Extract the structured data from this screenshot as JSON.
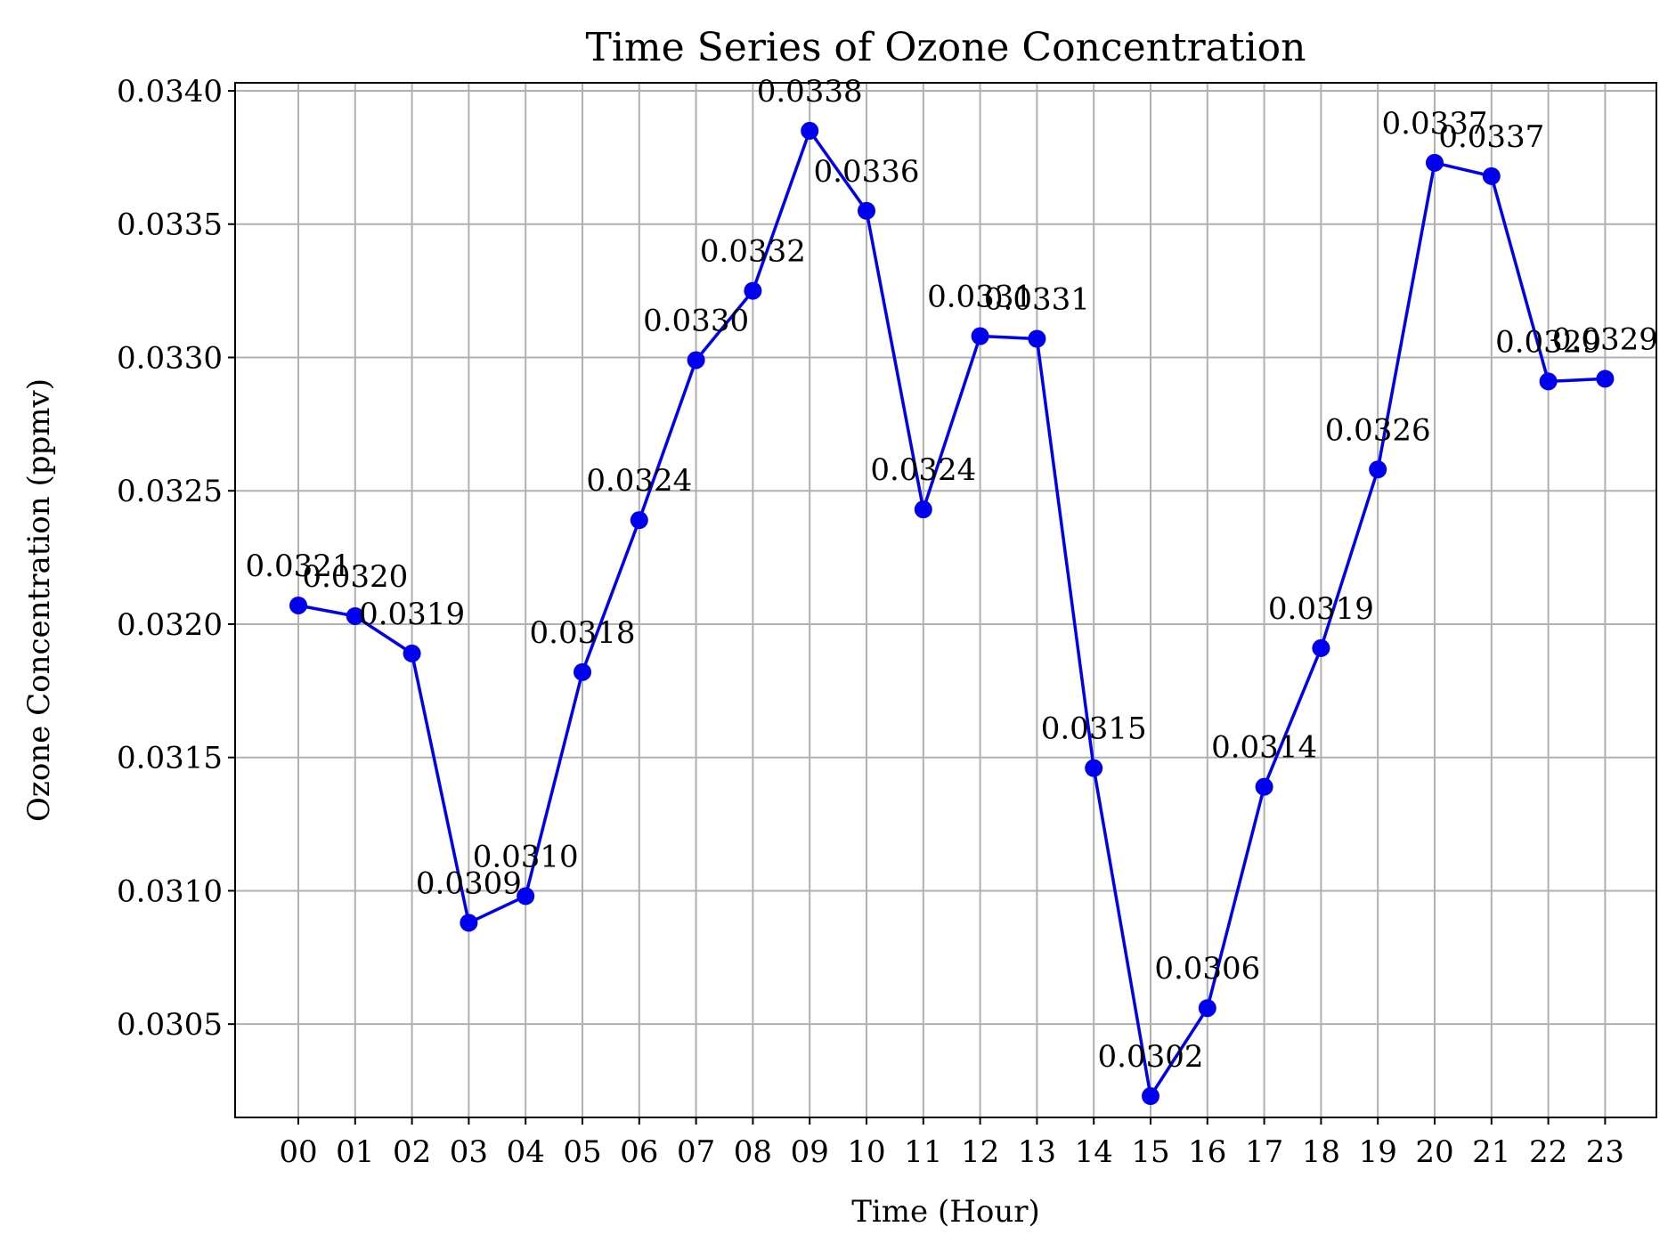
{
  "chart_data": {
    "type": "line",
    "title": "Time Series of Ozone Concentration",
    "xlabel": "Time (Hour)",
    "ylabel": "Ozone Concentration (ppmv)",
    "categories": [
      "00",
      "01",
      "02",
      "03",
      "04",
      "05",
      "06",
      "07",
      "08",
      "09",
      "10",
      "11",
      "12",
      "13",
      "14",
      "15",
      "16",
      "17",
      "18",
      "19",
      "20",
      "21",
      "22",
      "23"
    ],
    "series": [
      {
        "values": [
          0.03207,
          0.03203,
          0.03189,
          0.03088,
          0.03098,
          0.03182,
          0.03239,
          0.03299,
          0.03325,
          0.03385,
          0.03355,
          0.03243,
          0.03308,
          0.03307,
          0.03146,
          0.03023,
          0.03056,
          0.03139,
          0.03191,
          0.03258,
          0.03373,
          0.03368,
          0.03291,
          0.03292
        ],
        "labels": [
          "0.0321",
          "0.0320",
          "0.0319",
          "0.0309",
          "0.0310",
          "0.0318",
          "0.0324",
          "0.0330",
          "0.0332",
          "0.0338",
          "0.0336",
          "0.0324",
          "0.0331",
          "0.0331",
          "0.0315",
          "0.0302",
          "0.0306",
          "0.0314",
          "0.0319",
          "0.0326",
          "0.0337",
          "0.0337",
          "0.0329",
          "0.0329"
        ]
      }
    ],
    "yticks": [
      "0.0305",
      "0.0310",
      "0.0315",
      "0.0320",
      "0.0325",
      "0.0330",
      "0.0335",
      "0.0340"
    ],
    "ylim": [
      0.03015,
      0.03403
    ],
    "grid": true,
    "colors": {
      "line": "#0000ee"
    }
  }
}
